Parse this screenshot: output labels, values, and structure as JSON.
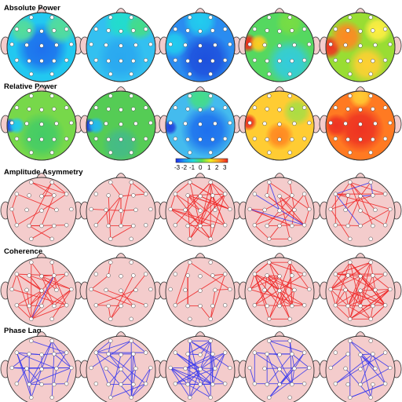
{
  "sections": [
    {
      "title": "Absolute Power",
      "kind": "map",
      "maps": [
        {
          "base": "#22c8f0",
          "blobs": [
            {
              "c": "#1e70ee",
              "u": 0.0,
              "v": 0.05,
              "r": 0.55
            },
            {
              "c": "#55dd99",
              "u": 0.55,
              "v": -0.55,
              "r": 0.35
            },
            {
              "c": "#55dd99",
              "u": -0.55,
              "v": -0.5,
              "r": 0.3
            }
          ]
        },
        {
          "base": "#33c0f0",
          "blobs": [
            {
              "c": "#22ddcc",
              "u": 0.0,
              "v": -0.7,
              "r": 0.35
            },
            {
              "c": "#44dd88",
              "u": 0.55,
              "v": -0.6,
              "r": 0.3
            },
            {
              "c": "#2aa8f0",
              "u": 0.0,
              "v": 0.3,
              "r": 0.5
            }
          ]
        },
        {
          "base": "#2a8cf0",
          "blobs": [
            {
              "c": "#1e50dd",
              "u": 0.15,
              "v": 0.35,
              "r": 0.55
            },
            {
              "c": "#22ccee",
              "u": 0.0,
              "v": -0.75,
              "r": 0.35
            },
            {
              "c": "#22ccee",
              "u": -0.75,
              "v": -0.1,
              "r": 0.3
            }
          ]
        },
        {
          "base": "#55d860",
          "blobs": [
            {
              "c": "#ee2a1a",
              "u": -0.92,
              "v": -0.12,
              "r": 0.2
            },
            {
              "c": "#ffcc22",
              "u": -0.6,
              "v": -0.1,
              "r": 0.2
            },
            {
              "c": "#33ccdd",
              "u": 0.3,
              "v": 0.45,
              "r": 0.5
            },
            {
              "c": "#77dd44",
              "u": 0.3,
              "v": -0.7,
              "r": 0.3
            }
          ]
        },
        {
          "base": "#99dd33",
          "blobs": [
            {
              "c": "#ee3322",
              "u": -0.88,
              "v": 0.0,
              "r": 0.25
            },
            {
              "c": "#ff8822",
              "u": -0.4,
              "v": -0.3,
              "r": 0.35
            },
            {
              "c": "#ffd033",
              "u": 0.2,
              "v": 0.5,
              "r": 0.4
            },
            {
              "c": "#ffee44",
              "u": 0.5,
              "v": -0.5,
              "r": 0.3
            }
          ]
        }
      ]
    },
    {
      "title": "Relative Power",
      "kind": "map",
      "maps": [
        {
          "base": "#77d84a",
          "blobs": [
            {
              "c": "#1e44ee",
              "u": -0.93,
              "v": 0.0,
              "r": 0.16
            },
            {
              "c": "#22ccee",
              "u": -0.72,
              "v": 0.0,
              "r": 0.18
            },
            {
              "c": "#44cc66",
              "u": 0.0,
              "v": 0.3,
              "r": 0.5
            }
          ]
        },
        {
          "base": "#55cc55",
          "blobs": [
            {
              "c": "#1e36dd",
              "u": -0.93,
              "v": 0.0,
              "r": 0.16
            },
            {
              "c": "#22bbee",
              "u": -0.72,
              "v": 0.0,
              "r": 0.18
            },
            {
              "c": "#44bb88",
              "u": 0.0,
              "v": 0.55,
              "r": 0.4
            }
          ]
        },
        {
          "base": "#44bbee",
          "blobs": [
            {
              "c": "#1e70ee",
              "u": 0.2,
              "v": 0.15,
              "r": 0.55
            },
            {
              "c": "#2244dd",
              "u": -0.88,
              "v": 0.05,
              "r": 0.16
            },
            {
              "c": "#44dd88",
              "u": 0.0,
              "v": -0.8,
              "r": 0.3
            }
          ]
        },
        {
          "base": "#ffcc33",
          "blobs": [
            {
              "c": "#ee3322",
              "u": -0.9,
              "v": -0.1,
              "r": 0.18
            },
            {
              "c": "#ff8822",
              "u": 0.0,
              "v": 0.3,
              "r": 0.3
            },
            {
              "c": "#aadd44",
              "u": 0.5,
              "v": -0.4,
              "r": 0.3
            }
          ]
        },
        {
          "base": "#ff7a22",
          "blobs": [
            {
              "c": "#ee3322",
              "u": 0.0,
              "v": 0.1,
              "r": 0.5
            },
            {
              "c": "#ffcc33",
              "u": 0.0,
              "v": -0.85,
              "r": 0.25
            },
            {
              "c": "#ee3322",
              "u": -0.7,
              "v": 0.0,
              "r": 0.25
            }
          ]
        }
      ]
    },
    {
      "title": "Amplitude Asymmetry",
      "kind": "net",
      "color": "#ee2a2a",
      "nets": [
        {
          "lines": 16,
          "blue": 0,
          "seed": 11
        },
        {
          "lines": 14,
          "blue": 0,
          "seed": 23
        },
        {
          "lines": 40,
          "blue": 0,
          "seed": 37
        },
        {
          "lines": 22,
          "blue": 3,
          "seed": 41
        },
        {
          "lines": 20,
          "blue": 4,
          "seed": 53
        }
      ]
    },
    {
      "title": "Coherence",
      "kind": "net",
      "color": "#ee2a2a",
      "nets": [
        {
          "lines": 30,
          "blue": 1,
          "seed": 61
        },
        {
          "lines": 10,
          "blue": 0,
          "seed": 73
        },
        {
          "lines": 12,
          "blue": 0,
          "seed": 89
        },
        {
          "lines": 45,
          "blue": 0,
          "seed": 97
        },
        {
          "lines": 60,
          "blue": 0,
          "seed": 103
        }
      ]
    },
    {
      "title": "Phase Lag",
      "kind": "net",
      "color": "#3a3aee",
      "nets": [
        {
          "lines": 30,
          "blue": 0,
          "seed": 107
        },
        {
          "lines": 24,
          "blue": 0,
          "seed": 113
        },
        {
          "lines": 40,
          "blue": 0,
          "seed": 127
        },
        {
          "lines": 26,
          "blue": 0,
          "seed": 131
        },
        {
          "lines": 18,
          "blue": 0,
          "seed": 139
        }
      ]
    }
  ],
  "colorbar": {
    "labels": [
      "-3",
      "-2",
      "-1",
      "0",
      "1",
      "2",
      "3"
    ],
    "colors": [
      "#1e2aee",
      "#1e9cf0",
      "#22d8dd",
      "#55dd55",
      "#eeee22",
      "#ff9922",
      "#ee2222"
    ]
  },
  "colors": {
    "head_fill": "#f4cccc",
    "head_stroke": "#333333",
    "electrode": "#ffffff"
  }
}
